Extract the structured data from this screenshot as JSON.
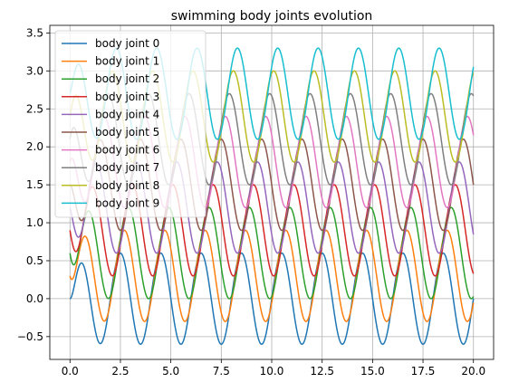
{
  "chart_data": {
    "type": "line",
    "title": "swimming body joints evolution",
    "xlabel": "",
    "ylabel": "",
    "xlim": [
      -1.0,
      21.0
    ],
    "ylim": [
      -0.8,
      3.6
    ],
    "xticks": [
      0.0,
      2.5,
      5.0,
      7.5,
      10.0,
      12.5,
      15.0,
      17.5,
      20.0
    ],
    "xtick_labels": [
      "0.0",
      "2.5",
      "5.0",
      "7.5",
      "10.0",
      "12.5",
      "15.0",
      "17.5",
      "20.0"
    ],
    "yticks": [
      -0.5,
      0.0,
      0.5,
      1.0,
      1.5,
      2.0,
      2.5,
      3.0,
      3.5
    ],
    "ytick_labels": [
      "−0.5",
      "0.0",
      "0.5",
      "1.0",
      "1.5",
      "2.0",
      "2.5",
      "3.0",
      "3.5"
    ],
    "grid": true,
    "legend": "upper-left",
    "x_range": [
      0,
      20
    ],
    "frequency_hz": 0.5,
    "series": [
      {
        "name": "body joint 0",
        "color": "#1f77b4",
        "offset": 0.0,
        "amplitude": 0.6,
        "phase_rad": 0.0
      },
      {
        "name": "body joint 1",
        "color": "#ff7f0e",
        "offset": 0.3,
        "amplitude": 0.6,
        "phase_rad": 0.628
      },
      {
        "name": "body joint 2",
        "color": "#2ca02c",
        "offset": 0.6,
        "amplitude": 0.6,
        "phase_rad": 1.257
      },
      {
        "name": "body joint 3",
        "color": "#d62728",
        "offset": 0.9,
        "amplitude": 0.6,
        "phase_rad": 1.885
      },
      {
        "name": "body joint 4",
        "color": "#9467bd",
        "offset": 1.2,
        "amplitude": 0.6,
        "phase_rad": 2.513
      },
      {
        "name": "body joint 5",
        "color": "#8c564b",
        "offset": 1.5,
        "amplitude": 0.6,
        "phase_rad": 3.142
      },
      {
        "name": "body joint 6",
        "color": "#e377c2",
        "offset": 1.8,
        "amplitude": 0.6,
        "phase_rad": 3.77
      },
      {
        "name": "body joint 7",
        "color": "#7f7f7f",
        "offset": 2.1,
        "amplitude": 0.6,
        "phase_rad": 4.398
      },
      {
        "name": "body joint 8",
        "color": "#bcbd22",
        "offset": 2.4,
        "amplitude": 0.6,
        "phase_rad": 5.027
      },
      {
        "name": "body joint 9",
        "color": "#17becf",
        "offset": 2.7,
        "amplitude": 0.6,
        "phase_rad": 5.655
      }
    ]
  }
}
